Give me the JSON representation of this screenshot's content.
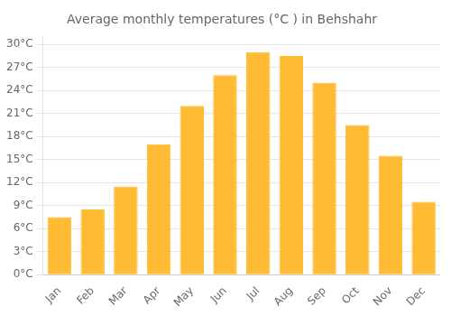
{
  "chart_data": {
    "type": "bar",
    "title": "Average monthly temperatures (°C ) in Behshahr",
    "categories": [
      "Jan",
      "Feb",
      "Mar",
      "Apr",
      "May",
      "Jun",
      "Jul",
      "Aug",
      "Sep",
      "Oct",
      "Nov",
      "Dec"
    ],
    "values": [
      7.5,
      8.5,
      11.5,
      17.0,
      22.0,
      26.0,
      29.0,
      28.5,
      25.0,
      19.5,
      15.5,
      9.5
    ],
    "color": "#FFBB33",
    "ylim": [
      0,
      31
    ],
    "yticks": [
      {
        "value": 0,
        "label": "0°C"
      },
      {
        "value": 3,
        "label": "3°C"
      },
      {
        "value": 6,
        "label": "6°C"
      },
      {
        "value": 9,
        "label": "9°C"
      },
      {
        "value": 12,
        "label": "12°C"
      },
      {
        "value": 15,
        "label": "15°C"
      },
      {
        "value": 18,
        "label": "18°C"
      },
      {
        "value": 21,
        "label": "21°C"
      },
      {
        "value": 24,
        "label": "24°C"
      },
      {
        "value": 27,
        "label": "27°C"
      },
      {
        "value": 30,
        "label": "30°C"
      }
    ],
    "grid": true
  }
}
